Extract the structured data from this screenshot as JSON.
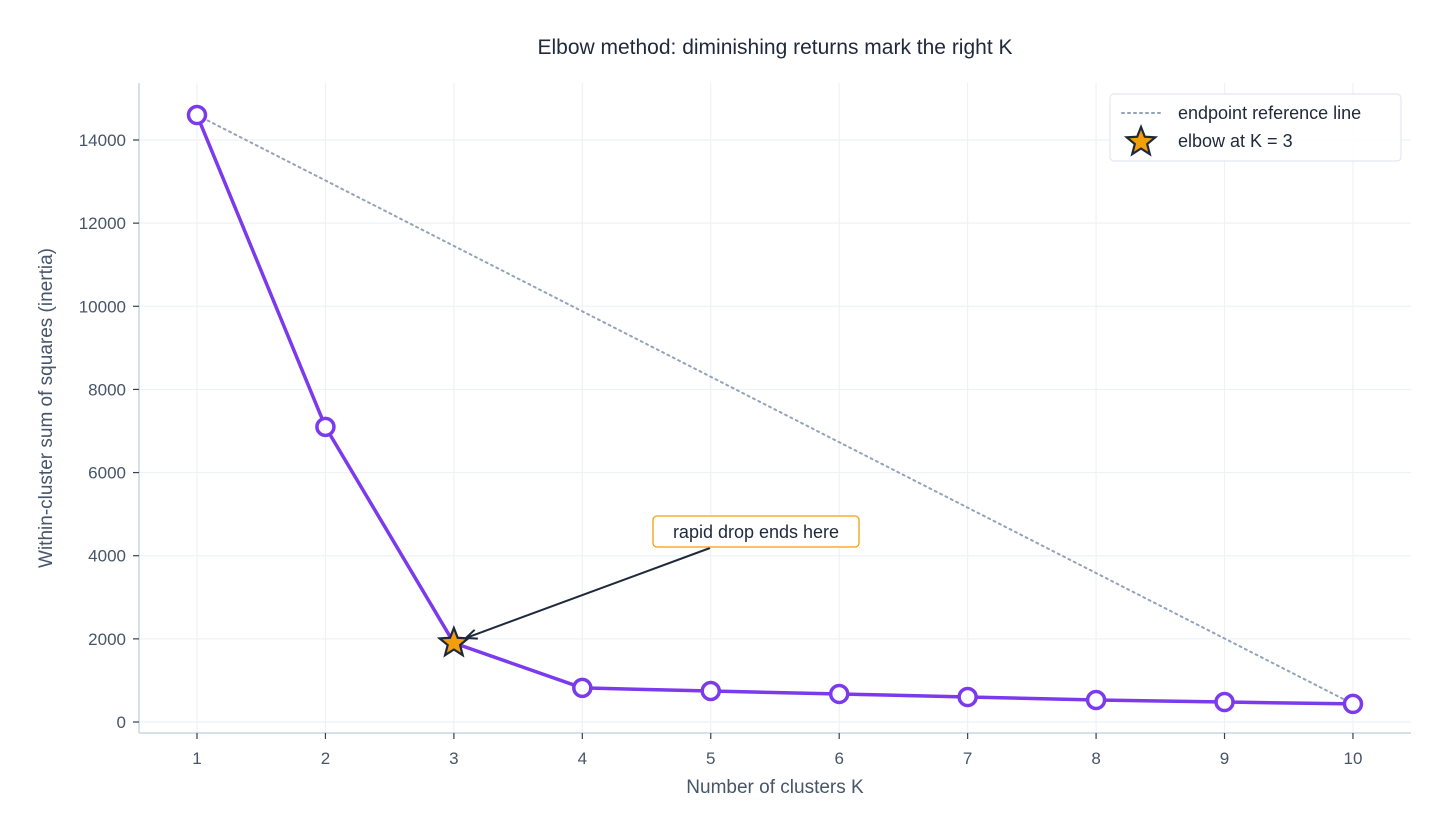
{
  "chart_data": {
    "type": "line",
    "title": "Elbow method: diminishing returns mark the right K",
    "xlabel": "Number of clusters K",
    "ylabel": "Within-cluster sum of squares (inertia)",
    "x": [
      1,
      2,
      3,
      4,
      5,
      6,
      7,
      8,
      9,
      10
    ],
    "series": [
      {
        "name": "inertia",
        "values": [
          14600,
          7100,
          1900,
          820,
          745,
          675,
          600,
          530,
          480,
          435
        ],
        "color": "#7c3aed",
        "marker": "open-circle"
      },
      {
        "name": "endpoint reference line",
        "x": [
          1,
          10
        ],
        "values": [
          14600,
          435
        ],
        "color": "#94a3b8",
        "style": "dotted"
      }
    ],
    "highlight": {
      "name": "elbow at K = 3",
      "x": 3,
      "y": 1900,
      "marker": "star",
      "color": "#f59e0b"
    },
    "annotation": {
      "text": "rapid drop ends here",
      "x": 3,
      "y": 1900,
      "text_x": 5.35,
      "text_y": 4600,
      "border_color": "#f59e0b"
    },
    "xticks": [
      1,
      2,
      3,
      4,
      5,
      6,
      7,
      8,
      9,
      10
    ],
    "yticks": [
      0,
      2000,
      4000,
      6000,
      8000,
      10000,
      12000,
      14000
    ],
    "xlim": [
      0.55,
      10.45
    ],
    "ylim": [
      -260,
      15350
    ],
    "grid": true,
    "legend_position": "upper right",
    "legend": [
      {
        "label": "endpoint reference line",
        "symbol": "dotted-line"
      },
      {
        "label": "elbow at K = 3",
        "symbol": "star"
      }
    ]
  },
  "colors": {
    "line": "#7c3aed",
    "reference": "#94a3b8",
    "star_fill": "#f59e0b",
    "star_edge": "#1e293b",
    "text": "#1e293b",
    "axis_text": "#475569",
    "grid": "#eef2f7",
    "spine": "#cbd5e1"
  }
}
